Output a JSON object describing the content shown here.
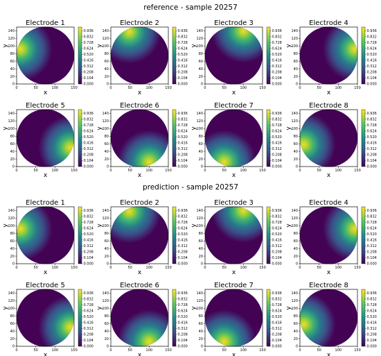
{
  "sections": [
    {
      "title": "reference - sample 20257"
    },
    {
      "title": "prediction - sample 20257"
    }
  ],
  "chart_data": {
    "type": "heatmap",
    "xlabel": "x",
    "ylabel": "y",
    "xlim": [
      0,
      150
    ],
    "ylim": [
      0,
      150
    ],
    "x_ticks": [
      "0",
      "50",
      "100",
      "150"
    ],
    "y_ticks": [
      "0",
      "20",
      "40",
      "60",
      "80",
      "100",
      "120",
      "140"
    ],
    "colorbar_ticks": [
      "0.000",
      "0.104",
      "0.208",
      "0.312",
      "0.416",
      "0.520",
      "0.624",
      "0.728",
      "0.832",
      "0.936"
    ],
    "colormap": "viridis",
    "panels": [
      {
        "title": "Electrode 1",
        "hot_x": 10,
        "hot_y": 92
      },
      {
        "title": "Electrode 2",
        "hot_x": 48,
        "hot_y": 138
      },
      {
        "title": "Electrode 3",
        "hot_x": 100,
        "hot_y": 140
      },
      {
        "title": "Electrode 4",
        "hot_x": 143,
        "hot_y": 92
      },
      {
        "title": "Electrode 5",
        "hot_x": 140,
        "hot_y": 50
      },
      {
        "title": "Electrode 6",
        "hot_x": 100,
        "hot_y": 12
      },
      {
        "title": "Electrode 7",
        "hot_x": 50,
        "hot_y": 12
      },
      {
        "title": "Electrode 8",
        "hot_x": 10,
        "hot_y": 58
      }
    ]
  }
}
